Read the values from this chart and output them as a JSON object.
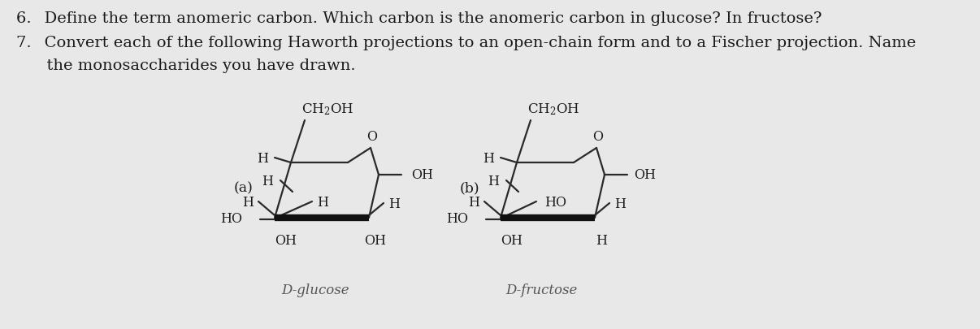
{
  "bg_color": "#e8e8e8",
  "text_color": "#1a1a1a",
  "line_color": "#2a2a2a",
  "bold_line_color": "#111111",
  "q6": "6.  Define the term anomeric carbon. Which carbon is the anomeric carbon in glucose? In fructose?",
  "q7l1": "7.  Convert each of the following Haworth projections to an open-chain form and to a Fischer projection. Name",
  "q7l2": "      the monosaccharides you have drawn.",
  "label_a": "(a)",
  "label_b": "(b)",
  "name_a": "D-glucose",
  "name_b": "D-fructose",
  "fontsize_text": 14,
  "fontsize_struct": 11.5
}
